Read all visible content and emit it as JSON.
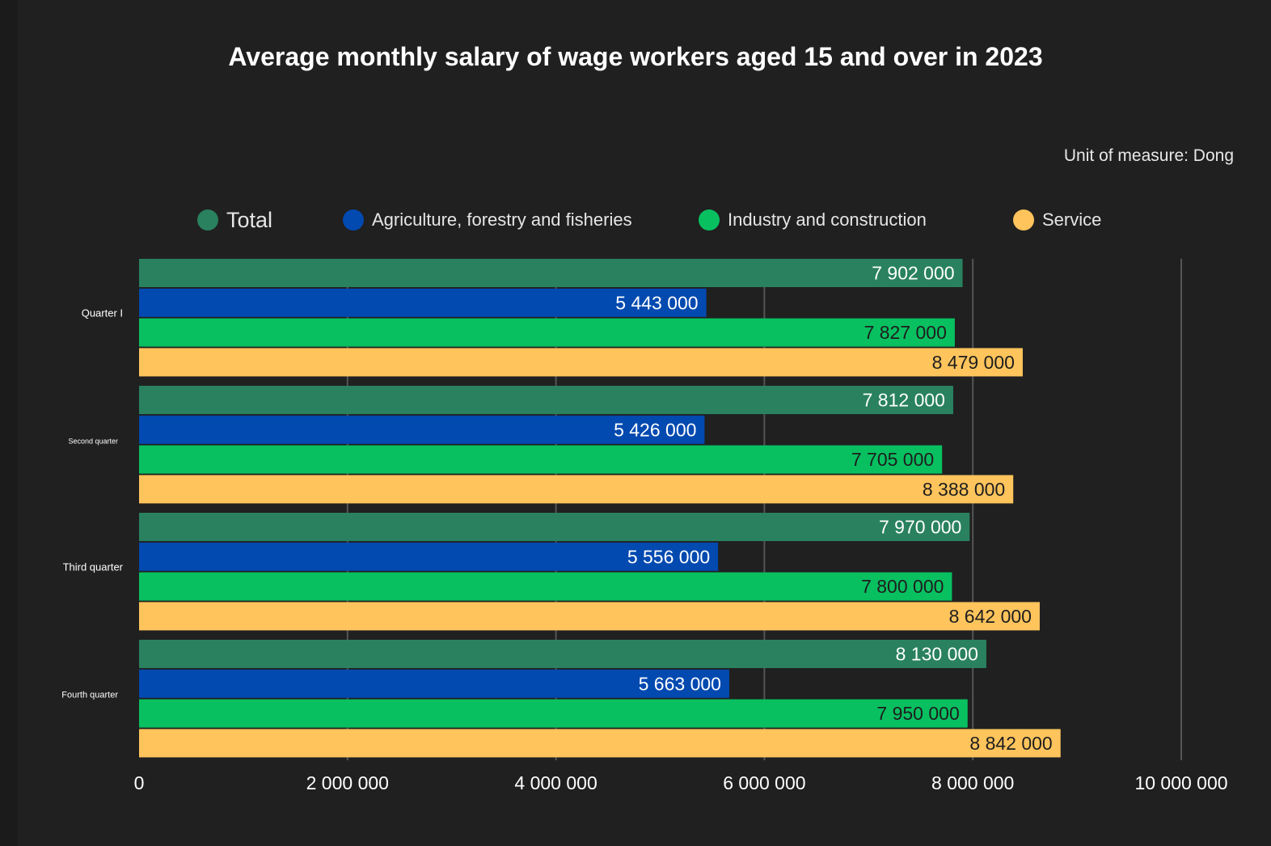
{
  "title": "Average monthly salary of wage workers aged 15 and over in 2023",
  "unit_note": "Unit of measure: Dong",
  "colors": {
    "total": "#29815f",
    "agriculture": "#0249b0",
    "industry": "#08c060",
    "service": "#ffc45c",
    "text_dark": "#1e1e1e",
    "text_light": "#ffffff",
    "grid": "#555555"
  },
  "legend": [
    {
      "label": "Total",
      "color": "#29815f"
    },
    {
      "label": "Agriculture, forestry and fisheries",
      "color": "#0249b0"
    },
    {
      "label": "Industry and construction",
      "color": "#08c060"
    },
    {
      "label": "Service",
      "color": "#ffc45c"
    }
  ],
  "chart_data": {
    "type": "bar",
    "orientation": "horizontal",
    "title": "Average monthly salary of wage workers aged 15 and over in 2023",
    "categories": [
      "Quarter I",
      "Second quarter",
      "Third quarter",
      "Fourth quarter"
    ],
    "series": [
      {
        "name": "Total",
        "color": "#29815f",
        "values": [
          7902000,
          7812000,
          7970000,
          8130000
        ],
        "labels": [
          "7 902 000",
          "7 812 000",
          "7 970 000",
          "8 130 000"
        ]
      },
      {
        "name": "Agriculture, forestry and fisheries",
        "color": "#0249b0",
        "values": [
          5443000,
          5426000,
          5556000,
          5663000
        ],
        "labels": [
          "5 443 000",
          "5 426 000",
          "5 556 000",
          "5 663 000"
        ]
      },
      {
        "name": "Industry and construction",
        "color": "#08c060",
        "values": [
          7827000,
          7705000,
          7800000,
          7950000
        ],
        "labels": [
          "7 827 000",
          "7 705 000",
          "7 800 000",
          "7 950 000"
        ]
      },
      {
        "name": "Service",
        "color": "#ffc45c",
        "values": [
          8479000,
          8388000,
          8642000,
          8842000
        ],
        "labels": [
          "8 479 000",
          "8 388 000",
          "8 642 000",
          "8 842 000"
        ]
      }
    ],
    "xlim": [
      0,
      10000000
    ],
    "xticks": [
      0,
      2000000,
      4000000,
      6000000,
      8000000,
      10000000
    ],
    "xtick_labels": [
      "0",
      "2 000 000",
      "4 000 000",
      "6 000 000",
      "8 000 000",
      "10 000 000"
    ],
    "grid": "vertical",
    "legend_position": "top",
    "data_labels": "inside-end"
  }
}
